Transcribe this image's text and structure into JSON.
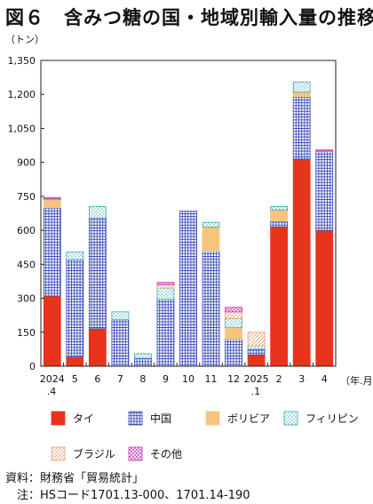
{
  "title": "図６　含みつ糖の国・地域別輸入量の推移",
  "source": "資料：財務省「貿易統計」",
  "note": "　注：HSコード1701.13-000、1701.14-190",
  "chart_data": {
    "type": "bar",
    "stacked": true,
    "title": "図６　含みつ糖の国・地域別輸入量の推移",
    "ylabel": "（トン）",
    "xlabel": "（年.月）",
    "ylim": [
      0,
      1350
    ],
    "yticks": [
      "0",
      "150",
      "300",
      "450",
      "600",
      "750",
      "900",
      "1,050",
      "1,200",
      "1,350"
    ],
    "grid": false,
    "legend": "bottom",
    "categories": [
      {
        "top": "2024",
        "bottom": ".4"
      },
      {
        "top": "5",
        "bottom": ""
      },
      {
        "top": "6",
        "bottom": ""
      },
      {
        "top": "7",
        "bottom": ""
      },
      {
        "top": "8",
        "bottom": ""
      },
      {
        "top": "9",
        "bottom": ""
      },
      {
        "top": "10",
        "bottom": ""
      },
      {
        "top": "11",
        "bottom": ""
      },
      {
        "top": "12",
        "bottom": ""
      },
      {
        "top": "2025",
        "bottom": ".1"
      },
      {
        "top": "2",
        "bottom": ""
      },
      {
        "top": "3",
        "bottom": ""
      },
      {
        "top": "4",
        "bottom": ""
      }
    ],
    "series": [
      {
        "name": "タイ",
        "color": "#e8341c",
        "pattern": "solid",
        "values": [
          310,
          40,
          165,
          0,
          0,
          0,
          0,
          0,
          0,
          50,
          615,
          915,
          600
        ]
      },
      {
        "name": "中国",
        "color": "#3a48b8",
        "pattern": "grid",
        "values": [
          390,
          430,
          490,
          205,
          35,
          295,
          685,
          510,
          120,
          25,
          25,
          275,
          350
        ]
      },
      {
        "name": "ボリビア",
        "color": "#f7c47e",
        "pattern": "solid",
        "values": [
          35,
          0,
          0,
          0,
          0,
          0,
          0,
          105,
          50,
          0,
          50,
          20,
          0
        ]
      },
      {
        "name": "フィリピン",
        "color": "#3ba7b8",
        "pattern": "dots",
        "values": [
          5,
          35,
          50,
          35,
          20,
          50,
          0,
          20,
          40,
          15,
          15,
          45,
          0
        ]
      },
      {
        "name": "ブラジル",
        "color": "#e8a07a",
        "pattern": "hatch",
        "values": [
          0,
          0,
          0,
          0,
          0,
          15,
          0,
          0,
          30,
          60,
          0,
          0,
          0
        ]
      },
      {
        "name": "その他",
        "color": "#c039b0",
        "pattern": "crosshatch",
        "values": [
          5,
          0,
          0,
          0,
          0,
          10,
          0,
          0,
          20,
          0,
          0,
          0,
          5
        ]
      }
    ]
  }
}
